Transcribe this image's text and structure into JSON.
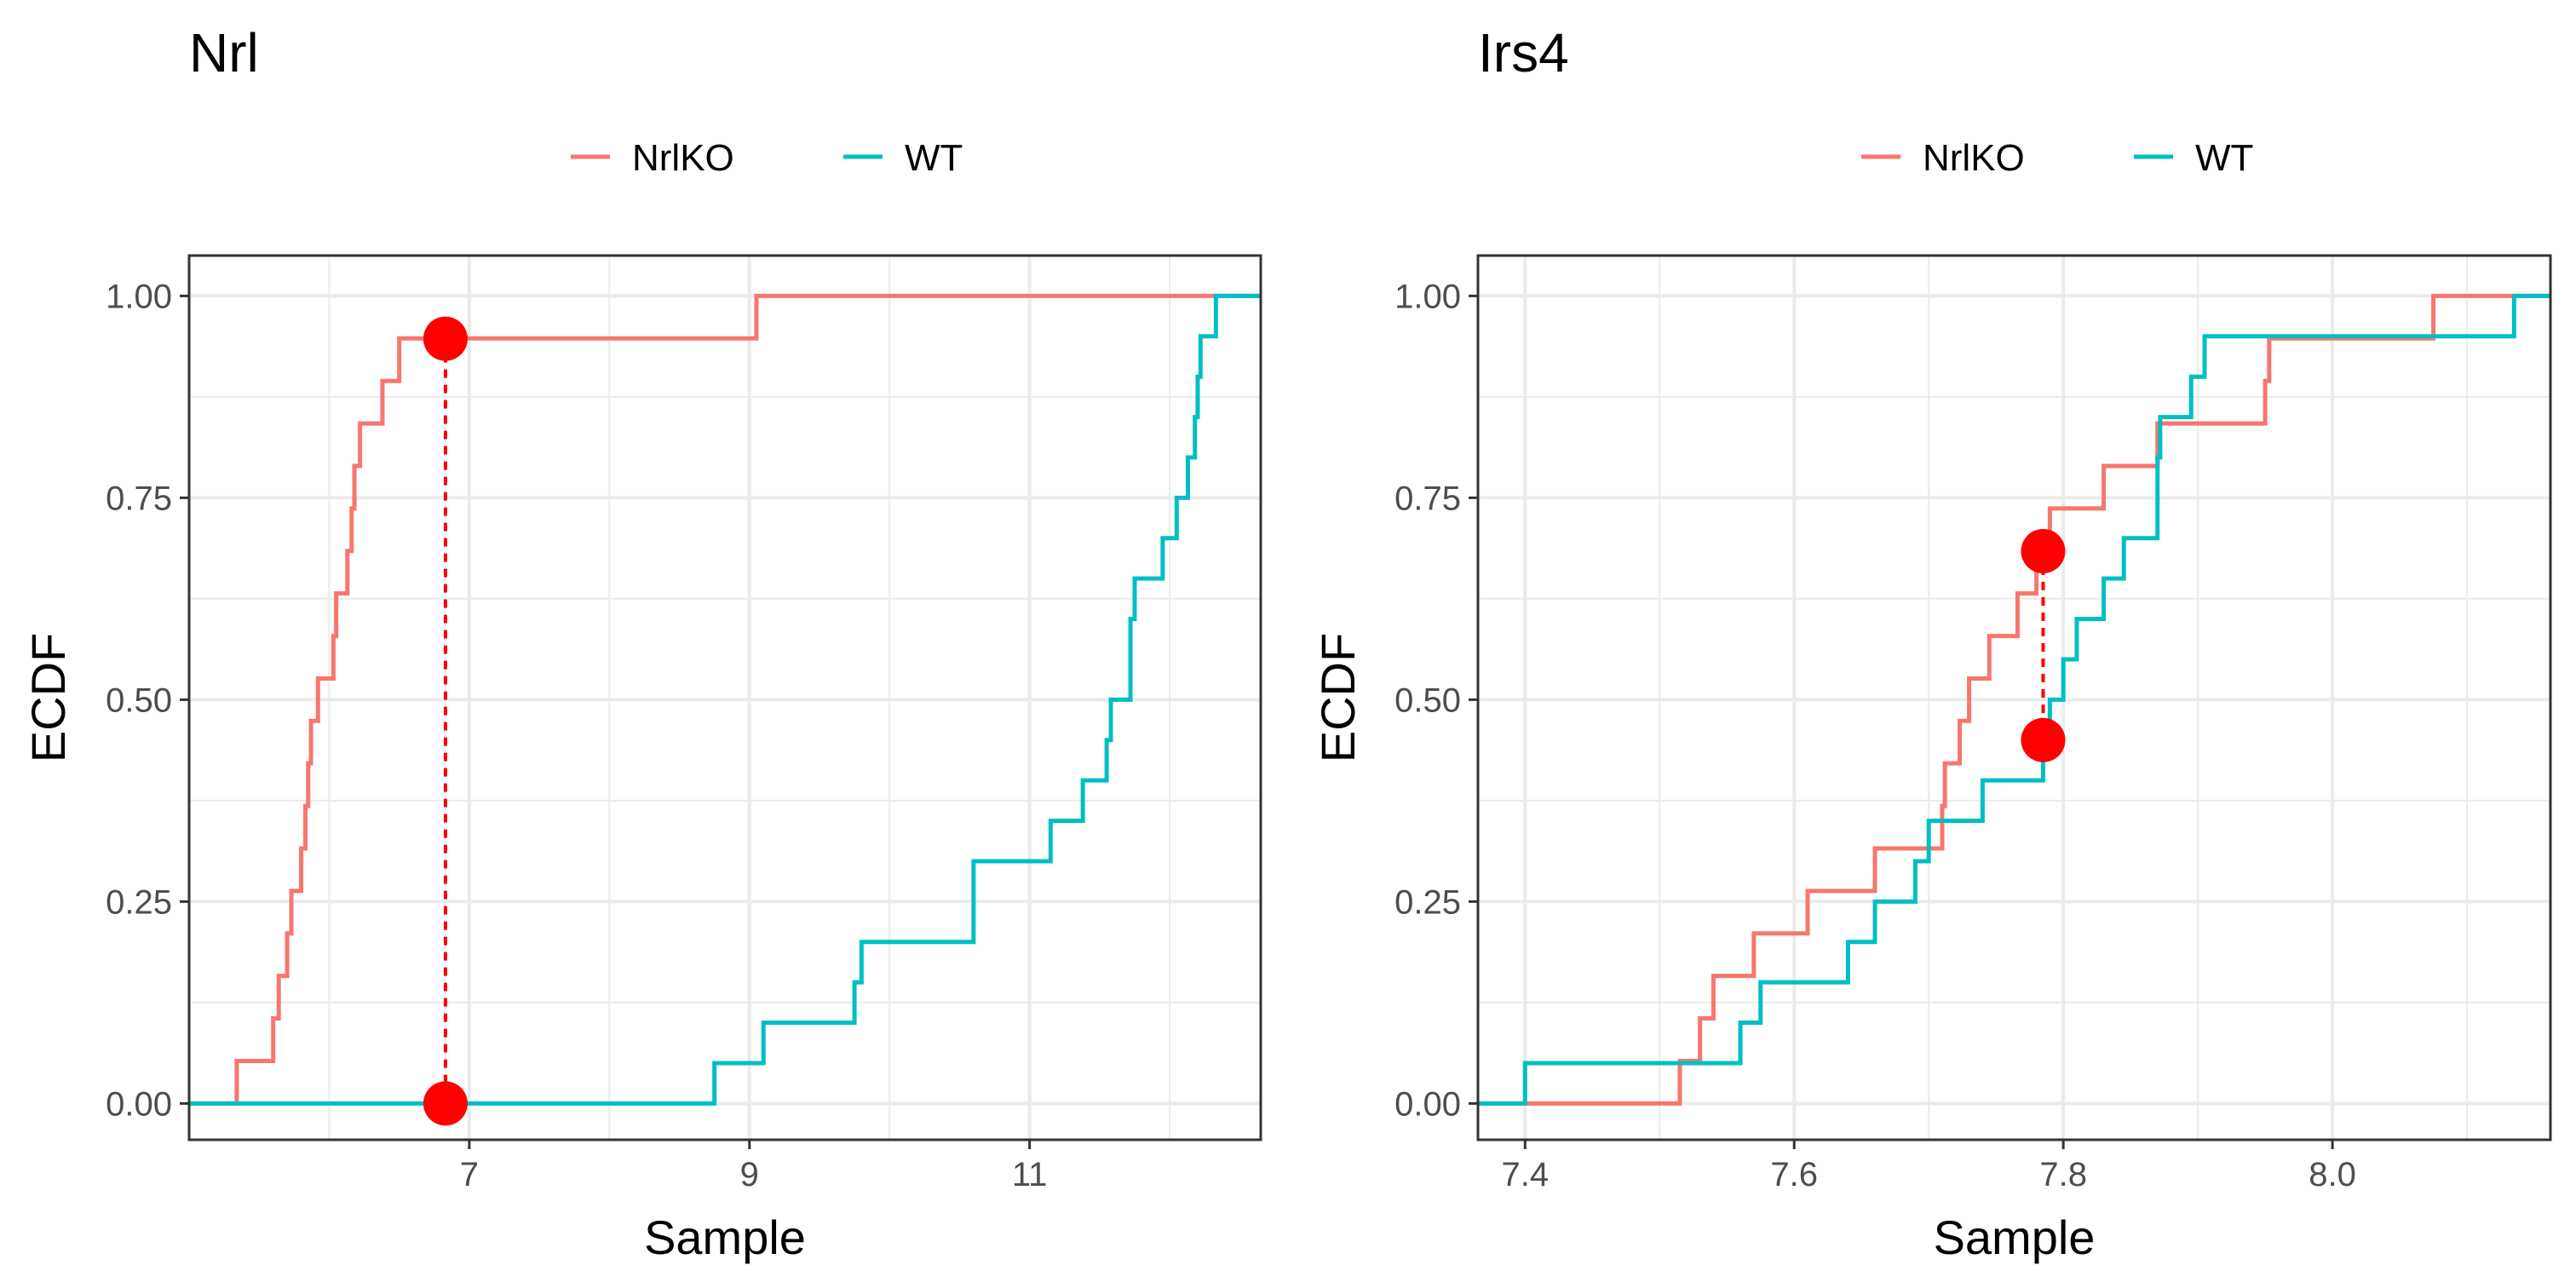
{
  "colors": {
    "NrlKO": "#F8766D",
    "WT": "#00BFC4",
    "marker": "#FF0000",
    "grid": "#EBEBEB",
    "panel_border": "#333333"
  },
  "chart_data": [
    {
      "type": "line",
      "subtype": "ecdf-step",
      "title": "Nrl",
      "xlabel": "Sample",
      "ylabel": "ECDF",
      "xlim": [
        5.0,
        12.65
      ],
      "ylim": [
        -0.045,
        1.05
      ],
      "xticks": [
        7,
        9,
        11
      ],
      "xtick_labels": [
        "7",
        "9",
        "11"
      ],
      "yticks": [
        0,
        0.25,
        0.5,
        0.75,
        1.0
      ],
      "ytick_labels": [
        "0.00",
        "0.25",
        "0.50",
        "0.75",
        "1.00"
      ],
      "grid": true,
      "legend": {
        "position": "top-center",
        "entries": [
          "NrlKO",
          "WT"
        ]
      },
      "series": [
        {
          "name": "NrlKO",
          "x": [
            5.34,
            5.6,
            5.64,
            5.7,
            5.73,
            5.8,
            5.83,
            5.85,
            5.87,
            5.92,
            6.03,
            6.05,
            6.13,
            6.16,
            6.18,
            6.22,
            6.38,
            6.5,
            9.05
          ],
          "y": [
            0.0526,
            0.1053,
            0.1579,
            0.2105,
            0.2632,
            0.3158,
            0.3684,
            0.4211,
            0.4737,
            0.5263,
            0.5789,
            0.6316,
            0.6842,
            0.7368,
            0.7895,
            0.8421,
            0.8947,
            0.9474,
            1.0
          ]
        },
        {
          "name": "WT",
          "x": [
            8.75,
            9.1,
            9.75,
            9.8,
            10.6,
            11.15,
            11.38,
            11.55,
            11.58,
            11.72,
            11.75,
            11.95,
            12.05,
            12.13,
            12.18,
            12.2,
            12.22,
            12.25,
            12.3,
            12.33
          ],
          "y": [
            0.05,
            0.1,
            0.15,
            0.2,
            0.3,
            0.35,
            0.4,
            0.45,
            0.5,
            0.6,
            0.65,
            0.7,
            0.75,
            0.8,
            0.85,
            0.9,
            0.95,
            0.95,
            0.95,
            1.0
          ]
        }
      ],
      "annotation": {
        "x": 6.83,
        "y_top": 0.947,
        "y_bottom": 0.0
      }
    },
    {
      "type": "line",
      "subtype": "ecdf-step",
      "title": "Irs4",
      "xlabel": "Sample",
      "ylabel": "ECDF",
      "xlim": [
        7.365,
        8.162
      ],
      "ylim": [
        -0.045,
        1.05
      ],
      "xticks": [
        7.4,
        7.6,
        7.8,
        8.0
      ],
      "xtick_labels": [
        "7.4",
        "7.6",
        "7.8",
        "8.0"
      ],
      "yticks": [
        0,
        0.25,
        0.5,
        0.75,
        1.0
      ],
      "ytick_labels": [
        "0.00",
        "0.25",
        "0.50",
        "0.75",
        "1.00"
      ],
      "grid": true,
      "legend": {
        "position": "top-center",
        "entries": [
          "NrlKO",
          "WT"
        ]
      },
      "series": [
        {
          "name": "NrlKO",
          "x": [
            7.515,
            7.53,
            7.54,
            7.57,
            7.61,
            7.66,
            7.71,
            7.712,
            7.723,
            7.73,
            7.745,
            7.766,
            7.78,
            7.79,
            7.83,
            7.87,
            7.95,
            7.953,
            8.075
          ],
          "y": [
            0.0526,
            0.1053,
            0.1579,
            0.2105,
            0.2632,
            0.3158,
            0.3684,
            0.4211,
            0.4737,
            0.5263,
            0.5789,
            0.6316,
            0.6842,
            0.7368,
            0.7895,
            0.8421,
            0.8947,
            0.9474,
            1.0
          ]
        },
        {
          "name": "WT",
          "x": [
            7.4,
            7.525,
            7.56,
            7.575,
            7.6,
            7.64,
            7.66,
            7.68,
            7.69,
            7.7,
            7.74,
            7.785,
            7.79,
            7.8,
            7.81,
            7.82,
            7.83,
            7.845,
            7.87,
            7.872,
            7.895,
            7.905,
            8.135
          ],
          "y": [
            0.05,
            0.05,
            0.1,
            0.15,
            0.15,
            0.2,
            0.25,
            0.25,
            0.3,
            0.35,
            0.4,
            0.45,
            0.5,
            0.55,
            0.6,
            0.6,
            0.65,
            0.7,
            0.8,
            0.85,
            0.9,
            0.95,
            1.0
          ]
        }
      ],
      "annotation": {
        "x": 7.785,
        "y_top": 0.684,
        "y_bottom": 0.45
      }
    }
  ]
}
